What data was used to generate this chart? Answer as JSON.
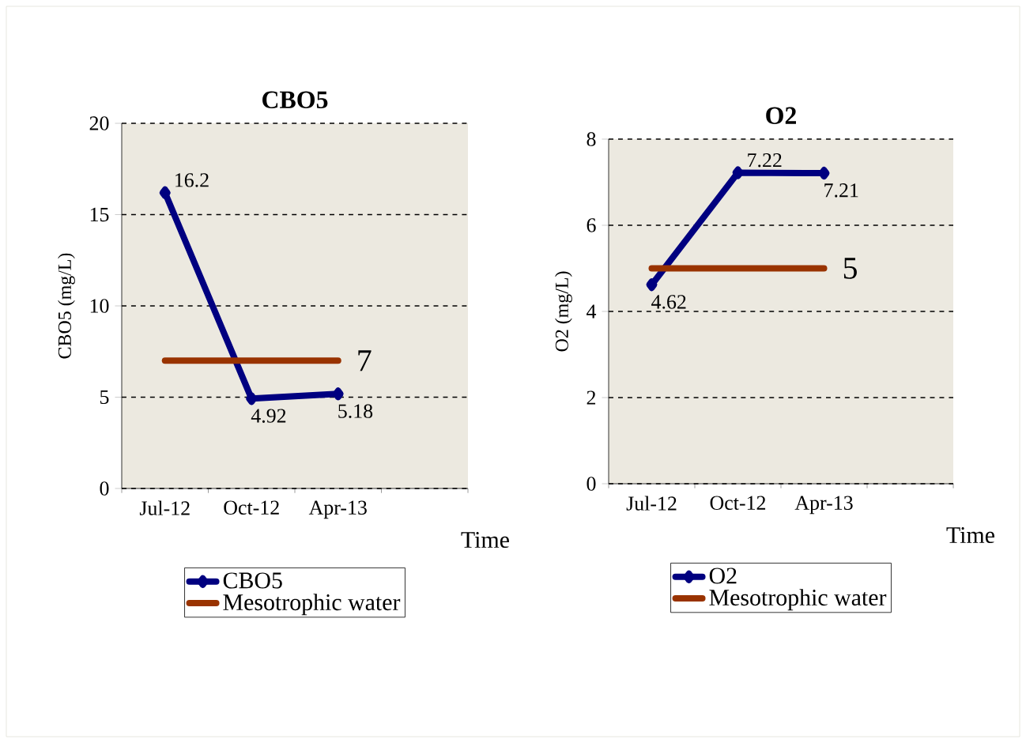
{
  "chart_data": [
    {
      "type": "line",
      "title": "CBO5",
      "xlabel": "Time",
      "ylabel": "CBO5 (mg/L)",
      "categories": [
        "Jul-12",
        "Oct-12",
        "Apr-13",
        null
      ],
      "ylim": [
        0,
        20
      ],
      "yticks": [
        0,
        5,
        10,
        15,
        20
      ],
      "grid": "y",
      "legend": "bottom",
      "line_style": "solid",
      "series": [
        {
          "name": "CBO5",
          "color": "#000080",
          "marker": "diamond",
          "values": [
            16.2,
            4.92,
            5.18,
            null
          ],
          "value_labels": [
            "16.2",
            "4.92",
            "5.18",
            null
          ]
        },
        {
          "name": "Mesotrophic water",
          "color": "#993300",
          "marker": "none",
          "values": [
            7,
            7,
            7,
            null
          ],
          "value_labels": [
            null,
            null,
            "7",
            null
          ]
        }
      ]
    },
    {
      "type": "line",
      "title": "O2",
      "xlabel": "Time",
      "ylabel": "O2 (mg/L)",
      "categories": [
        "Jul-12",
        "Oct-12",
        "Apr-13",
        null
      ],
      "ylim": [
        0,
        8
      ],
      "yticks": [
        0,
        2,
        4,
        6,
        8
      ],
      "grid": "y",
      "legend": "bottom",
      "line_style": "solid",
      "series": [
        {
          "name": "O2",
          "color": "#000080",
          "marker": "diamond",
          "values": [
            4.62,
            7.22,
            7.21,
            null
          ],
          "value_labels": [
            "4.62",
            "7.22",
            "7.21",
            null
          ]
        },
        {
          "name": "Mesotrophic water",
          "color": "#993300",
          "marker": "none",
          "values": [
            5,
            5,
            5,
            null
          ],
          "value_labels": [
            null,
            null,
            "5",
            null
          ]
        }
      ]
    }
  ]
}
